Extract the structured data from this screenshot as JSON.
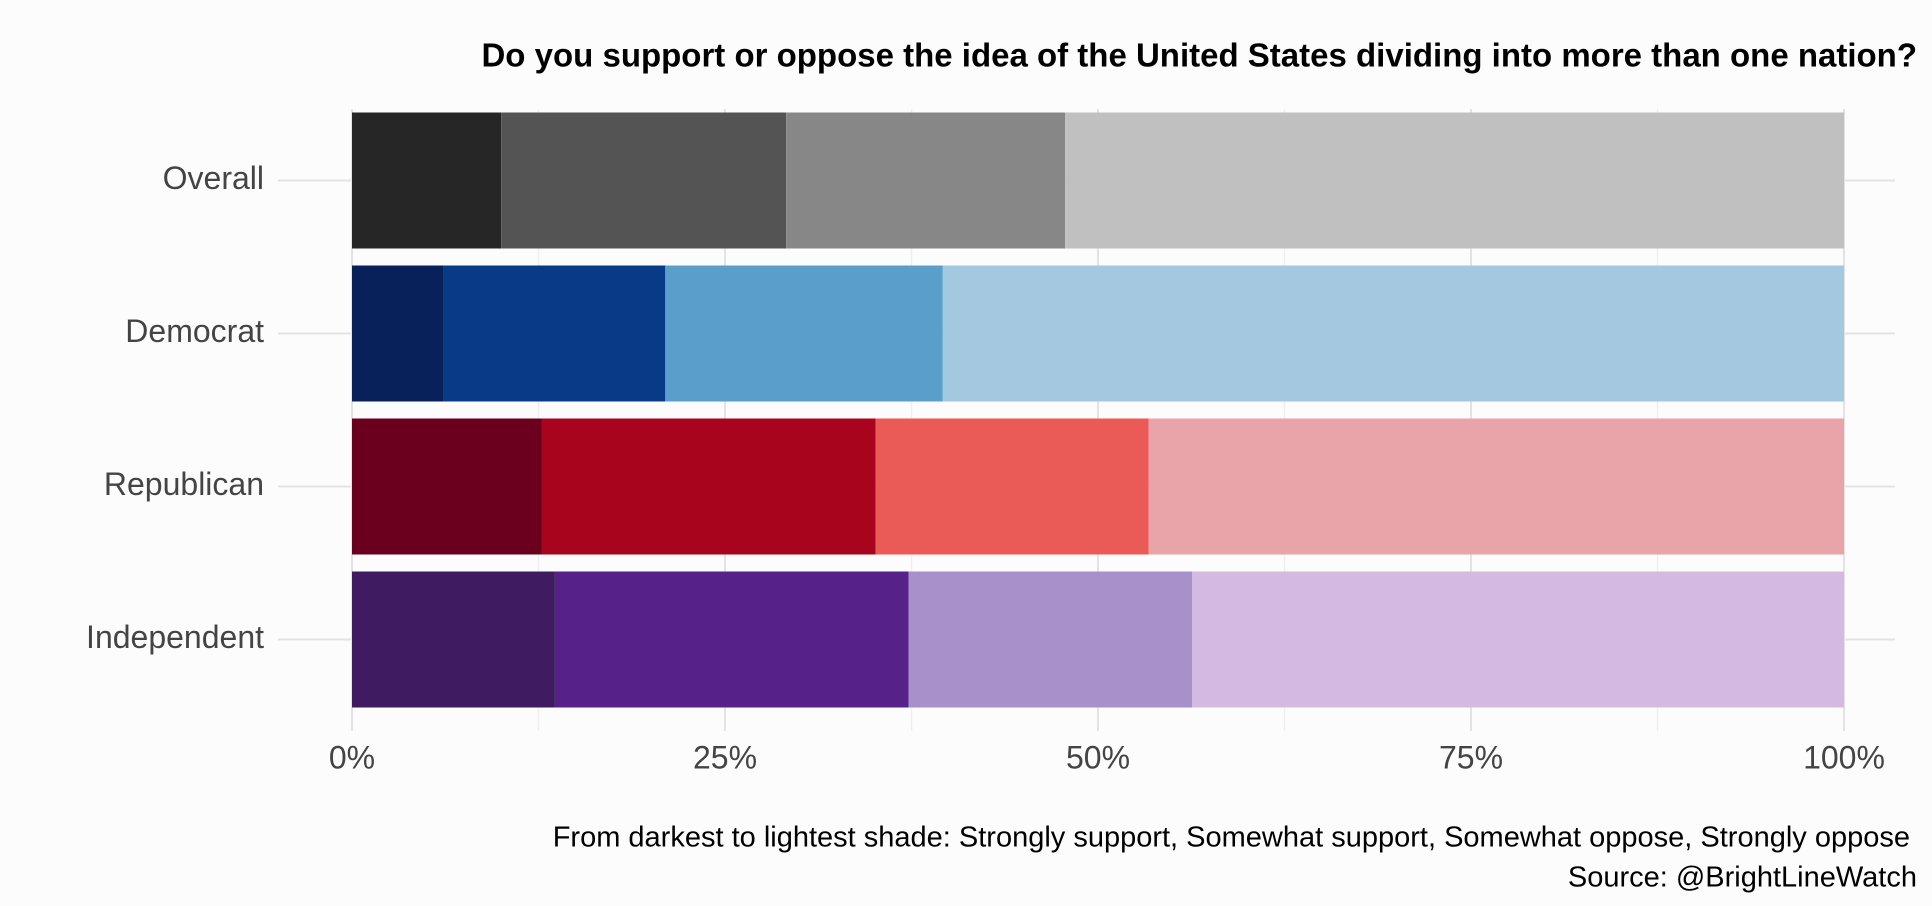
{
  "chart_data": {
    "type": "stacked_barh",
    "title": "Do you support or oppose the idea of the United States dividing into more than one nation?",
    "caption": [
      "From darkest to lightest shade: Strongly support, Somewhat support, Somewhat oppose, Strongly oppose",
      "Source: @BrightLineWatch"
    ],
    "categories": [
      "Overall",
      "Democrat",
      "Republican",
      "Independent"
    ],
    "series": [
      {
        "values": [
          10.0,
          6.1,
          12.7,
          13.6
        ],
        "colors": [
          "#262626",
          "#08215a",
          "#6b001e",
          "#3f1b62"
        ]
      },
      {
        "values": [
          19.1,
          14.9,
          22.4,
          23.7
        ],
        "colors": [
          "#545454",
          "#083b87",
          "#a8041e",
          "#56228a"
        ]
      },
      {
        "values": [
          18.7,
          18.6,
          18.3,
          19.0
        ],
        "colors": [
          "#878787",
          "#5a9fcb",
          "#ea5a57",
          "#a890cb"
        ]
      },
      {
        "values": [
          52.2,
          60.4,
          46.6,
          43.7
        ],
        "colors": [
          "#c0c0c0",
          "#a5c8e1",
          "#e8a4a9",
          "#d4bae3"
        ]
      }
    ],
    "xlim": [
      0,
      100
    ],
    "xticks": [
      {
        "value": 0,
        "label": "0%"
      },
      {
        "value": 25,
        "label": "25%"
      },
      {
        "value": 50,
        "label": "50%"
      },
      {
        "value": 75,
        "label": "75%"
      },
      {
        "value": 100,
        "label": "100%"
      }
    ],
    "minor_xticks": [
      12.5,
      37.5,
      62.5,
      87.5
    ],
    "grid": true
  }
}
